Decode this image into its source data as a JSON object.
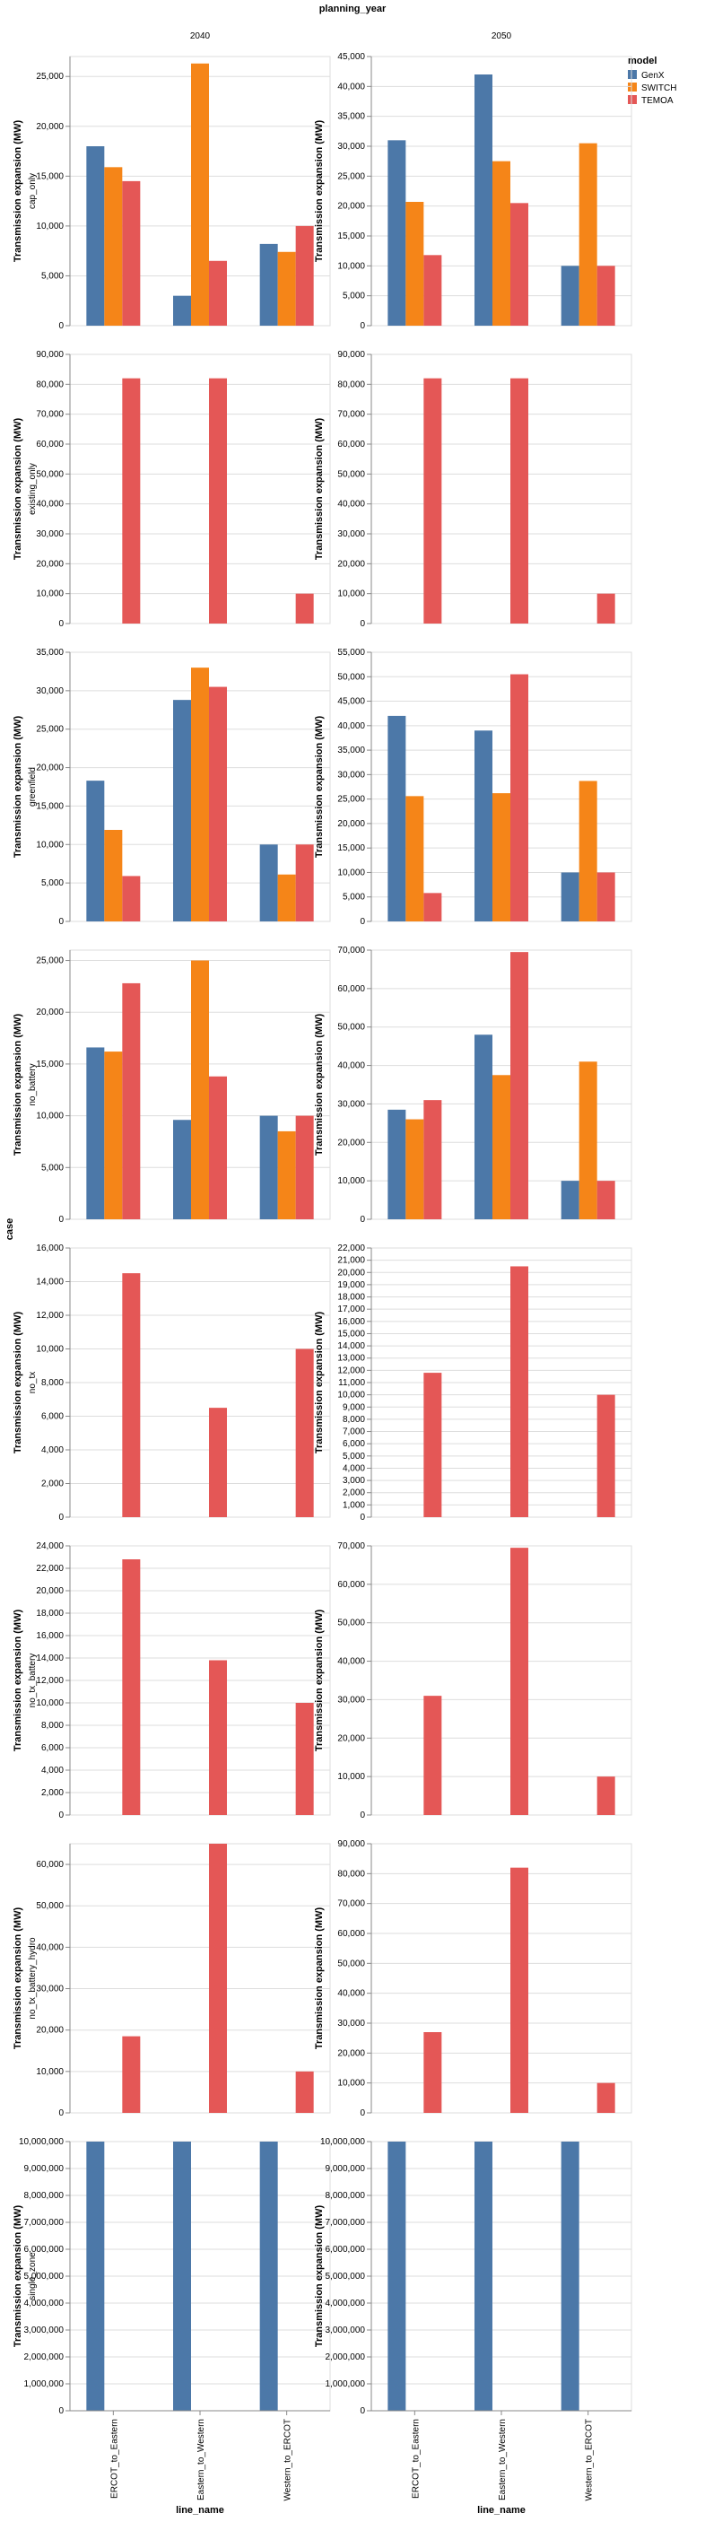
{
  "chart_data": {
    "type": "bar",
    "title": "planning_year",
    "row_title": "case",
    "xlabel": "line_name",
    "ylabel": "Transmission expansion (MW)",
    "columns": [
      "2040",
      "2050"
    ],
    "rows": [
      "cap_only",
      "existing_only",
      "greenfield",
      "no_battery",
      "no_tx",
      "no_tx_battery",
      "no_tx_battery_hydro",
      "single_zone"
    ],
    "categories": [
      "ERCOT_to_Eastern",
      "Eastern_to_Western",
      "Western_to_ERCOT"
    ],
    "legend": {
      "title": "model",
      "placement": "top-right",
      "entries": [
        "GenX",
        "SWITCH",
        "TEMOA"
      ],
      "colors": [
        "#4c78a8",
        "#f58518",
        "#e45756"
      ]
    },
    "grid": true,
    "panels": [
      {
        "row": "cap_only",
        "col": "2040",
        "ylim": [
          0,
          27000
        ],
        "ticks": [
          0,
          5000,
          10000,
          15000,
          20000,
          25000
        ],
        "values": {
          "GenX": [
            18000,
            3000,
            8200
          ],
          "SWITCH": [
            15900,
            26300,
            7400
          ],
          "TEMOA": [
            14500,
            6500,
            10000
          ]
        }
      },
      {
        "row": "cap_only",
        "col": "2050",
        "ylim": [
          0,
          45000
        ],
        "ticks": [
          0,
          5000,
          10000,
          15000,
          20000,
          25000,
          30000,
          35000,
          40000,
          45000
        ],
        "values": {
          "GenX": [
            31000,
            42000,
            10000
          ],
          "SWITCH": [
            20700,
            27500,
            30500
          ],
          "TEMOA": [
            11800,
            20500,
            10000
          ]
        }
      },
      {
        "row": "existing_only",
        "col": "2040",
        "ylim": [
          0,
          90000
        ],
        "ticks": [
          0,
          10000,
          20000,
          30000,
          40000,
          50000,
          60000,
          70000,
          80000,
          90000
        ],
        "values": {
          "GenX": [
            0,
            0,
            0
          ],
          "SWITCH": [
            0,
            0,
            0
          ],
          "TEMOA": [
            82000,
            82000,
            10000
          ]
        }
      },
      {
        "row": "existing_only",
        "col": "2050",
        "ylim": [
          0,
          90000
        ],
        "ticks": [
          0,
          10000,
          20000,
          30000,
          40000,
          50000,
          60000,
          70000,
          80000,
          90000
        ],
        "values": {
          "GenX": [
            0,
            0,
            0
          ],
          "SWITCH": [
            0,
            0,
            0
          ],
          "TEMOA": [
            82000,
            82000,
            10000
          ]
        }
      },
      {
        "row": "greenfield",
        "col": "2040",
        "ylim": [
          0,
          35000
        ],
        "ticks": [
          0,
          5000,
          10000,
          15000,
          20000,
          25000,
          30000,
          35000
        ],
        "values": {
          "GenX": [
            18300,
            28800,
            10000
          ],
          "SWITCH": [
            11900,
            33000,
            6100
          ],
          "TEMOA": [
            5900,
            30500,
            10000
          ]
        }
      },
      {
        "row": "greenfield",
        "col": "2050",
        "ylim": [
          0,
          55000
        ],
        "ticks": [
          0,
          5000,
          10000,
          15000,
          20000,
          25000,
          30000,
          35000,
          40000,
          45000,
          50000,
          55000
        ],
        "values": {
          "GenX": [
            42000,
            39000,
            10000
          ],
          "SWITCH": [
            25600,
            26200,
            28700
          ],
          "TEMOA": [
            5800,
            50500,
            10000
          ]
        }
      },
      {
        "row": "no_battery",
        "col": "2040",
        "ylim": [
          0,
          26000
        ],
        "ticks": [
          0,
          5000,
          10000,
          15000,
          20000,
          25000
        ],
        "values": {
          "GenX": [
            16600,
            9600,
            10000
          ],
          "SWITCH": [
            16200,
            25000,
            8500
          ],
          "TEMOA": [
            22800,
            13800,
            10000
          ]
        }
      },
      {
        "row": "no_battery",
        "col": "2050",
        "ylim": [
          0,
          70000
        ],
        "ticks": [
          0,
          10000,
          20000,
          30000,
          40000,
          50000,
          60000,
          70000
        ],
        "values": {
          "GenX": [
            28500,
            48000,
            10000
          ],
          "SWITCH": [
            26000,
            37500,
            41000
          ],
          "TEMOA": [
            31000,
            69500,
            10000
          ]
        }
      },
      {
        "row": "no_tx",
        "col": "2040",
        "ylim": [
          0,
          16000
        ],
        "ticks": [
          0,
          2000,
          4000,
          6000,
          8000,
          10000,
          12000,
          14000,
          16000
        ],
        "values": {
          "GenX": [
            0,
            0,
            0
          ],
          "SWITCH": [
            0,
            0,
            0
          ],
          "TEMOA": [
            14500,
            6500,
            10000
          ]
        }
      },
      {
        "row": "no_tx",
        "col": "2050",
        "ylim": [
          0,
          22000
        ],
        "ticks": [
          0,
          1000,
          2000,
          3000,
          4000,
          5000,
          6000,
          7000,
          8000,
          9000,
          10000,
          11000,
          12000,
          13000,
          14000,
          15000,
          16000,
          17000,
          18000,
          19000,
          20000,
          21000,
          22000
        ],
        "values": {
          "GenX": [
            0,
            0,
            0
          ],
          "SWITCH": [
            0,
            0,
            0
          ],
          "TEMOA": [
            11800,
            20500,
            10000
          ]
        }
      },
      {
        "row": "no_tx_battery",
        "col": "2040",
        "ylim": [
          0,
          24000
        ],
        "ticks": [
          0,
          2000,
          4000,
          6000,
          8000,
          10000,
          12000,
          14000,
          16000,
          18000,
          20000,
          22000,
          24000
        ],
        "values": {
          "GenX": [
            0,
            0,
            0
          ],
          "SWITCH": [
            0,
            0,
            0
          ],
          "TEMOA": [
            22800,
            13800,
            10000
          ]
        }
      },
      {
        "row": "no_tx_battery",
        "col": "2050",
        "ylim": [
          0,
          70000
        ],
        "ticks": [
          0,
          10000,
          20000,
          30000,
          40000,
          50000,
          60000,
          70000
        ],
        "values": {
          "GenX": [
            0,
            0,
            0
          ],
          "SWITCH": [
            0,
            0,
            0
          ],
          "TEMOA": [
            31000,
            69500,
            10000
          ]
        }
      },
      {
        "row": "no_tx_battery_hydro",
        "col": "2040",
        "ylim": [
          0,
          65000
        ],
        "ticks": [
          0,
          10000,
          20000,
          30000,
          40000,
          50000,
          60000
        ],
        "values": {
          "GenX": [
            0,
            0,
            0
          ],
          "SWITCH": [
            0,
            0,
            0
          ],
          "TEMOA": [
            18500,
            65000,
            10000
          ]
        }
      },
      {
        "row": "no_tx_battery_hydro",
        "col": "2050",
        "ylim": [
          0,
          90000
        ],
        "ticks": [
          0,
          10000,
          20000,
          30000,
          40000,
          50000,
          60000,
          70000,
          80000,
          90000
        ],
        "values": {
          "GenX": [
            0,
            0,
            0
          ],
          "SWITCH": [
            0,
            0,
            0
          ],
          "TEMOA": [
            27000,
            82000,
            10000
          ]
        }
      },
      {
        "row": "single_zone",
        "col": "2040",
        "ylim": [
          0,
          10000000
        ],
        "ticks": [
          0,
          1000000,
          2000000,
          3000000,
          4000000,
          5000000,
          6000000,
          7000000,
          8000000,
          9000000,
          10000000
        ],
        "values": {
          "GenX": [
            10000000,
            10000000,
            10000000
          ],
          "SWITCH": [
            0,
            0,
            0
          ],
          "TEMOA": [
            0,
            0,
            0
          ]
        }
      },
      {
        "row": "single_zone",
        "col": "2050",
        "ylim": [
          0,
          10000000
        ],
        "ticks": [
          0,
          1000000,
          2000000,
          3000000,
          4000000,
          5000000,
          6000000,
          7000000,
          8000000,
          9000000,
          10000000
        ],
        "values": {
          "GenX": [
            10000000,
            10000000,
            10000000
          ],
          "SWITCH": [
            0,
            0,
            0
          ],
          "TEMOA": [
            0,
            0,
            0
          ]
        }
      }
    ]
  }
}
